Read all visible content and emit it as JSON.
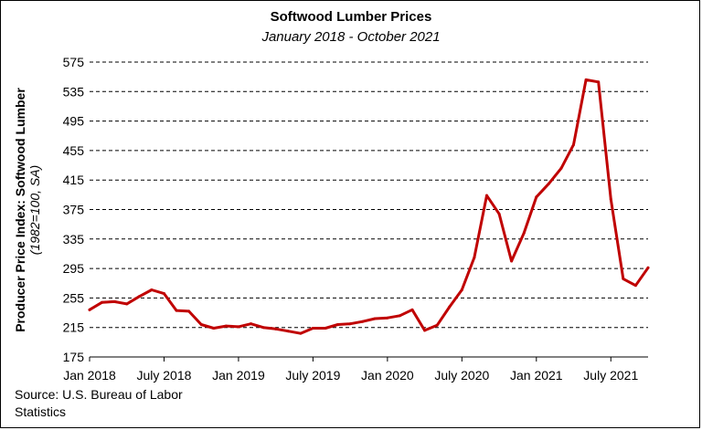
{
  "title": "Softwood Lumber Prices",
  "subtitle": "January 2018 - October 2021",
  "source": "Source: U.S. Bureau of Labor Statistics",
  "colors": {
    "line": "#c00000",
    "grid": "#000000"
  },
  "chart_data": {
    "type": "line",
    "title": "Softwood Lumber Prices",
    "subtitle": "January 2018 - October 2021",
    "ylabel": "Producer Price Index: Softwood Lumber",
    "ylabel_sub": "(1982=100, SA)",
    "xlabel": "",
    "ylim": [
      175,
      575
    ],
    "yticks": [
      175,
      215,
      255,
      295,
      335,
      375,
      415,
      455,
      495,
      535,
      575
    ],
    "grid": "horizontal dashed",
    "xtick_labels": [
      "Jan 2018",
      "July 2018",
      "Jan 2019",
      "July 2019",
      "Jan 2020",
      "July 2020",
      "Jan 2021",
      "July 2021"
    ],
    "xtick_index": [
      0,
      6,
      12,
      18,
      24,
      30,
      36,
      42
    ],
    "x": [
      "Jan 2018",
      "Feb 2018",
      "Mar 2018",
      "Apr 2018",
      "May 2018",
      "Jun 2018",
      "Jul 2018",
      "Aug 2018",
      "Sep 2018",
      "Oct 2018",
      "Nov 2018",
      "Dec 2018",
      "Jan 2019",
      "Feb 2019",
      "Mar 2019",
      "Apr 2019",
      "May 2019",
      "Jun 2019",
      "Jul 2019",
      "Aug 2019",
      "Sep 2019",
      "Oct 2019",
      "Nov 2019",
      "Dec 2019",
      "Jan 2020",
      "Feb 2020",
      "Mar 2020",
      "Apr 2020",
      "May 2020",
      "Jun 2020",
      "Jul 2020",
      "Aug 2020",
      "Sep 2020",
      "Oct 2020",
      "Nov 2020",
      "Dec 2020",
      "Jan 2021",
      "Feb 2021",
      "Mar 2021",
      "Apr 2021",
      "May 2021",
      "Jun 2021",
      "Jul 2021",
      "Aug 2021",
      "Sep 2021",
      "Oct 2021"
    ],
    "series": [
      {
        "values": [
          239,
          249,
          250,
          247,
          257,
          266,
          261,
          238,
          237,
          219,
          214,
          217,
          216,
          220,
          215,
          213,
          210,
          207,
          214,
          214,
          219,
          220,
          223,
          227,
          228,
          231,
          239,
          211,
          218,
          243,
          266,
          310,
          394,
          369,
          305,
          343,
          392,
          410,
          431,
          463,
          551,
          548,
          389,
          281,
          272,
          296
        ]
      }
    ]
  }
}
